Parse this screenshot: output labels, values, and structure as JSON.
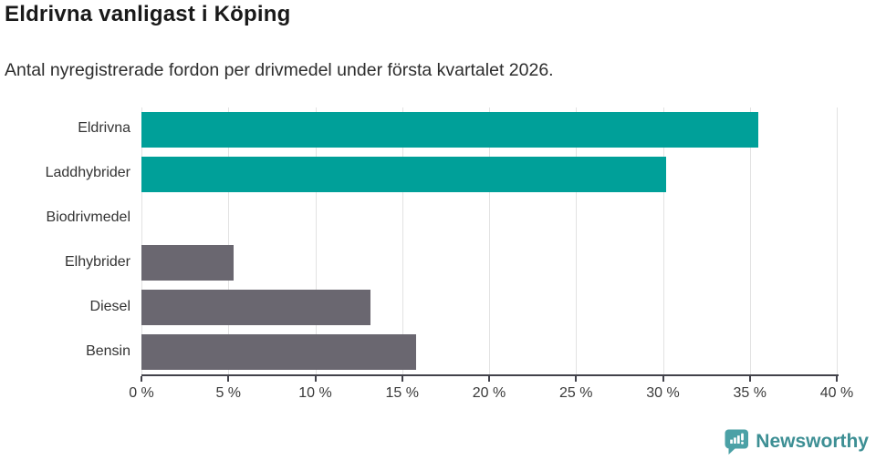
{
  "title": "Eldrivna vanligast i Köping",
  "subtitle": "Antal nyregistrerade fordon per drivmedel under första kvartalet 2026.",
  "chart_data": {
    "type": "bar",
    "orientation": "horizontal",
    "categories": [
      "Eldrivna",
      "Laddhybrider",
      "Biodrivmedel",
      "Elhybrider",
      "Diesel",
      "Bensin"
    ],
    "values": [
      35.5,
      30.2,
      0,
      5.3,
      13.2,
      15.8
    ],
    "unit": "%",
    "bar_colors": [
      "#00a099",
      "#00a099",
      "#6a6770",
      "#6a6770",
      "#6a6770",
      "#6a6770"
    ],
    "xlim": [
      0,
      40
    ],
    "xticks": [
      0,
      5,
      10,
      15,
      20,
      25,
      30,
      35,
      40
    ],
    "xtick_labels": [
      "0 %",
      "5 %",
      "10 %",
      "15 %",
      "20 %",
      "25 %",
      "30 %",
      "35 %",
      "40 %"
    ],
    "grid": true,
    "legend": "none",
    "title": "Eldrivna vanligast i Köping",
    "xlabel": "",
    "ylabel": ""
  },
  "colors": {
    "highlight_bar": "#00a099",
    "default_bar": "#6a6770",
    "gridline": "#e2e2e2",
    "axis": "#42424a",
    "logo_icon": "#4ba1a6",
    "logo_text": "#3d8f94"
  },
  "footer": {
    "brand": "Newsworthy"
  }
}
